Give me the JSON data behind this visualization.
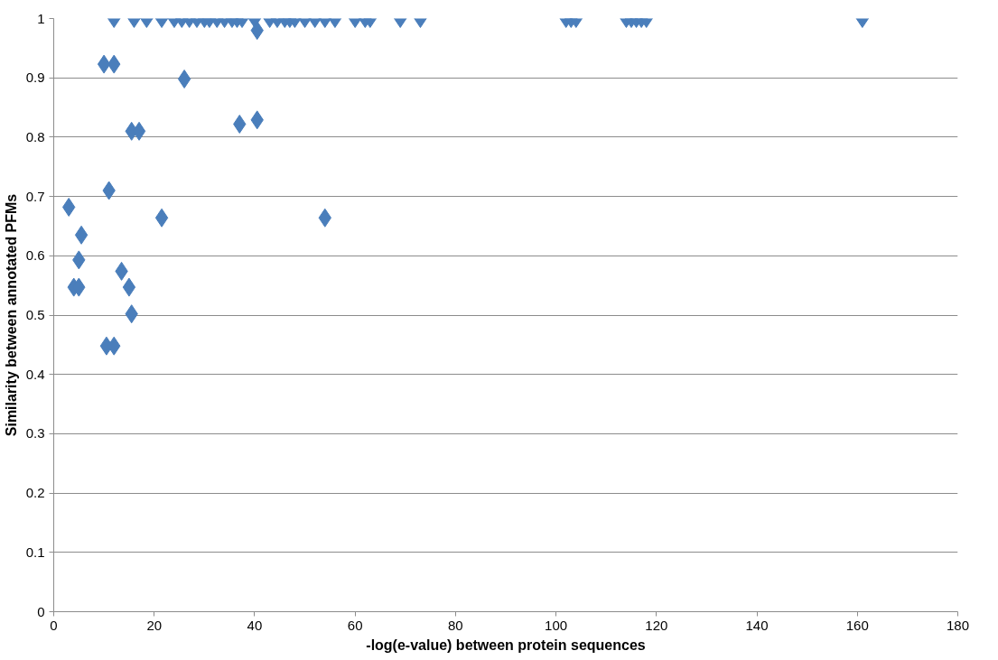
{
  "chart_data": {
    "type": "scatter",
    "xlabel": "-log(e-value) between protein sequences",
    "ylabel": "Similarity between annotated PFMs",
    "marker": "diamond",
    "grid": "y",
    "xlim": [
      0,
      180
    ],
    "xticks": [
      0,
      20,
      40,
      60,
      80,
      100,
      120,
      140,
      160,
      180
    ],
    "ylim": [
      0,
      1
    ],
    "yticks": [
      0,
      0.1,
      0.2,
      0.3,
      0.4,
      0.5,
      0.6,
      0.7,
      0.8,
      0.9,
      1
    ],
    "series": [
      {
        "color": "#4a7ebb",
        "x": [
          12,
          16,
          18.5,
          21.5,
          24,
          25.5,
          27,
          28.5,
          30,
          31,
          32.5,
          34,
          35.5,
          36.5,
          37.5,
          40,
          43,
          44.5,
          46,
          47,
          48,
          50,
          52,
          54,
          56,
          60,
          62,
          63,
          69,
          73,
          102,
          103,
          104,
          114,
          115,
          116,
          117,
          118,
          161,
          40.5,
          10,
          12,
          26,
          15.5,
          17,
          37,
          40.5,
          11,
          21.5,
          54,
          3,
          5.5,
          5,
          4,
          5,
          13.5,
          15,
          15.5,
          10.5,
          12
        ],
        "values": [
          1,
          1,
          1,
          1,
          1,
          1,
          1,
          1,
          1,
          1,
          1,
          1,
          1,
          1,
          1,
          1,
          1,
          1,
          1,
          1,
          1,
          1,
          1,
          1,
          1,
          1,
          1,
          1,
          1,
          1,
          1,
          1,
          1,
          1,
          1,
          1,
          1,
          1,
          1,
          0.98,
          0.923,
          0.923,
          0.898,
          0.81,
          0.81,
          0.822,
          0.829,
          0.71,
          0.664,
          0.664,
          0.682,
          0.635,
          0.593,
          0.547,
          0.547,
          0.574,
          0.547,
          0.502,
          0.448,
          0.448
        ]
      }
    ]
  }
}
